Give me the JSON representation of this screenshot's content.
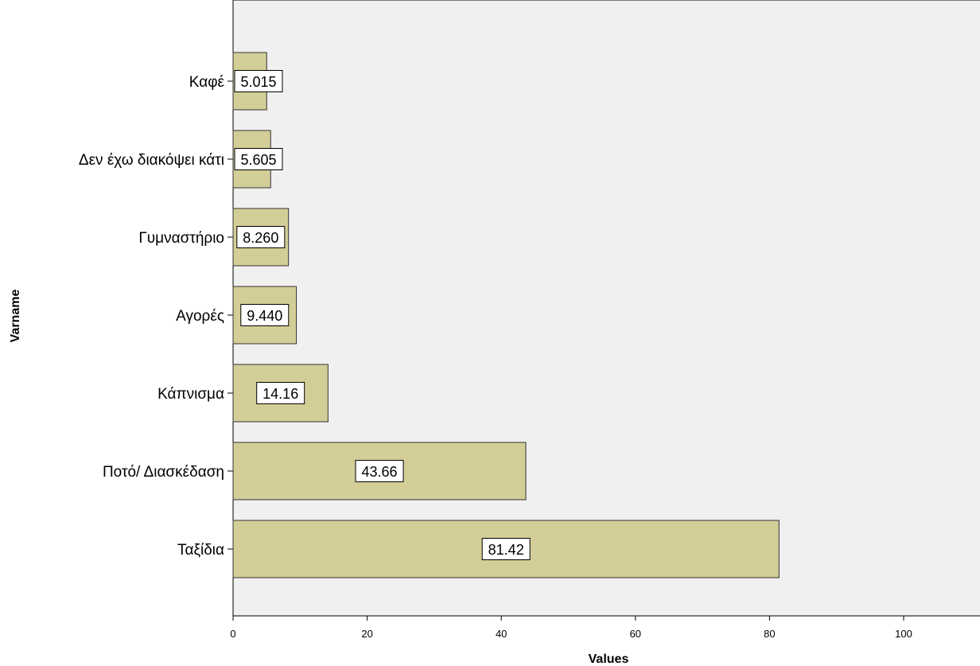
{
  "chart_data": {
    "type": "bar",
    "orientation": "horizontal",
    "categories": [
      "Καφέ",
      "Δεν έχω διακόψει κάτι",
      "Γυμναστήριο",
      "Αγορές",
      "Κάπνισμα",
      "Ποτό/ Διασκέδαση",
      "Ταξίδια"
    ],
    "values": [
      5.015,
      5.605,
      8.26,
      9.44,
      14.16,
      43.66,
      81.42
    ],
    "value_labels": [
      "5.015",
      "5.605",
      "8.260",
      "9.440",
      "14.16",
      "43.66",
      "81.42"
    ],
    "xlabel": "Values",
    "ylabel": "Varname",
    "xlim": [
      0,
      110
    ],
    "xticks": [
      0,
      20,
      40,
      60,
      80,
      100
    ],
    "grid": false,
    "colors": {
      "bar": "#d3ce97",
      "plot_background": "#f0f0f0"
    }
  }
}
